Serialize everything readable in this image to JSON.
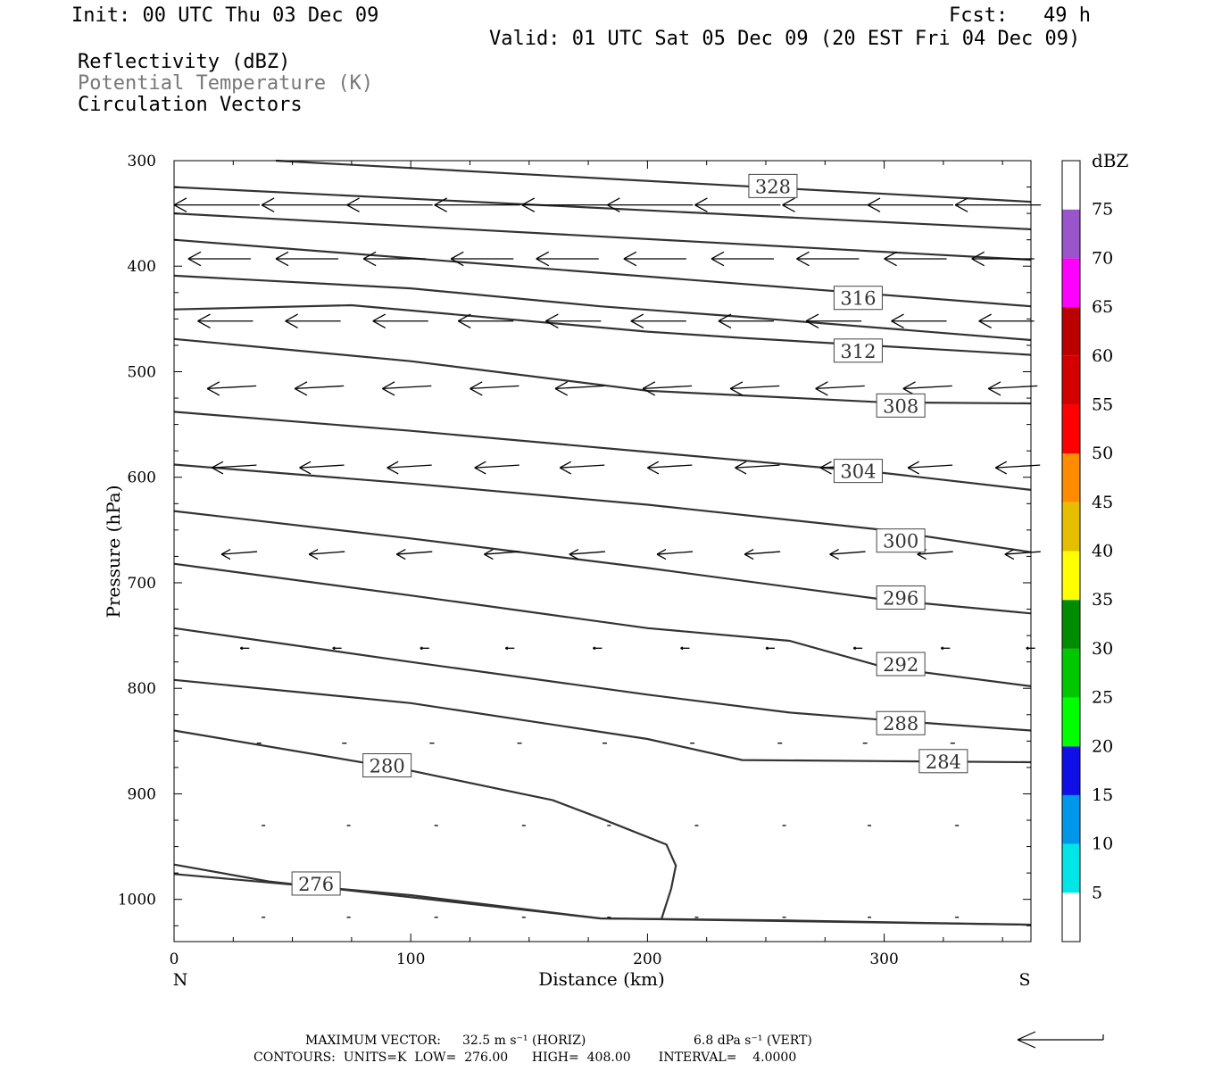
{
  "header": {
    "init": "Init: 00 UTC Thu 03 Dec 09",
    "fcst": "Fcst:   49 h",
    "valid": "Valid: 01 UTC Sat 05 Dec 09 (20 EST Fri 04 Dec 09)",
    "fields": [
      "Reflectivity (dBZ)",
      "Potential Temperature (K)",
      "Circulation Vectors"
    ]
  },
  "colors": {
    "contour": "#333333",
    "vector": "#000000",
    "field_gray": "#777777"
  },
  "chart_data": {
    "type": "cross-section",
    "xlabel": "Distance (km)",
    "ylabel": "Pressure (hPa)",
    "xlim": [
      0,
      362
    ],
    "ylim": [
      300,
      1040
    ],
    "x_ticks": [
      0,
      100,
      200,
      300
    ],
    "y_ticks": [
      300,
      400,
      500,
      600,
      700,
      800,
      900,
      1000
    ],
    "x_end_labels": {
      "left": "N",
      "right": "S"
    },
    "contours": [
      {
        "label": "328",
        "points": [
          [
            43,
            300
          ],
          [
            362,
            339
          ]
        ],
        "label_at": [
          253,
          324
        ]
      },
      {
        "label": "",
        "points": [
          [
            0,
            325
          ],
          [
            362,
            365
          ]
        ]
      },
      {
        "label": "",
        "points": [
          [
            0,
            350
          ],
          [
            362,
            394
          ]
        ]
      },
      {
        "label": "",
        "points": [
          [
            0,
            375
          ],
          [
            362,
            438
          ]
        ]
      },
      {
        "label": "316",
        "points": [
          [
            0,
            409
          ],
          [
            100,
            421
          ],
          [
            180,
            438
          ],
          [
            240,
            448
          ],
          [
            362,
            470
          ]
        ],
        "label_at": [
          289,
          430
        ]
      },
      {
        "label": "312",
        "points": [
          [
            0,
            441
          ],
          [
            75,
            437
          ],
          [
            100,
            442
          ],
          [
            200,
            462
          ],
          [
            240,
            468
          ],
          [
            362,
            484
          ]
        ],
        "label_at": [
          289,
          480
        ]
      },
      {
        "label": "308",
        "points": [
          [
            0,
            469
          ],
          [
            100,
            490
          ],
          [
            200,
            518
          ],
          [
            300,
            529
          ],
          [
            362,
            530
          ]
        ],
        "label_at": [
          307,
          532
        ]
      },
      {
        "label": "304",
        "points": [
          [
            0,
            538
          ],
          [
            100,
            556
          ],
          [
            200,
            576
          ],
          [
            300,
            596
          ],
          [
            362,
            612
          ]
        ],
        "label_at": [
          289,
          594
        ]
      },
      {
        "label": "300",
        "points": [
          [
            0,
            588
          ],
          [
            100,
            606
          ],
          [
            200,
            626
          ],
          [
            300,
            650
          ],
          [
            362,
            671
          ]
        ],
        "label_at": [
          307,
          660
        ]
      },
      {
        "label": "296",
        "points": [
          [
            0,
            632
          ],
          [
            100,
            658
          ],
          [
            200,
            686
          ],
          [
            300,
            716
          ],
          [
            362,
            729
          ]
        ],
        "label_at": [
          307,
          714
        ]
      },
      {
        "label": "292",
        "points": [
          [
            0,
            682
          ],
          [
            100,
            712
          ],
          [
            200,
            743
          ],
          [
            260,
            755
          ],
          [
            300,
            780
          ],
          [
            362,
            798
          ]
        ],
        "label_at": [
          307,
          777
        ]
      },
      {
        "label": "288",
        "points": [
          [
            0,
            743
          ],
          [
            100,
            775
          ],
          [
            200,
            806
          ],
          [
            260,
            823
          ],
          [
            300,
            830
          ],
          [
            362,
            840
          ]
        ],
        "label_at": [
          307,
          833
        ]
      },
      {
        "label": "284",
        "points": [
          [
            0,
            792
          ],
          [
            100,
            814
          ],
          [
            200,
            848
          ],
          [
            240,
            868
          ],
          [
            300,
            869
          ],
          [
            362,
            870
          ]
        ],
        "label_at": [
          325,
          869
        ]
      },
      {
        "label": "280",
        "points": [
          [
            0,
            840
          ],
          [
            100,
            878
          ],
          [
            160,
            906
          ],
          [
            180,
            923
          ],
          [
            208,
            948
          ],
          [
            212,
            968
          ],
          [
            210,
            990
          ],
          [
            206,
            1018
          ]
        ],
        "label_at": [
          90,
          873
        ]
      },
      {
        "label": "276",
        "points": [
          [
            0,
            967
          ],
          [
            40,
            983
          ],
          [
            100,
            998
          ],
          [
            180,
            1018
          ],
          [
            260,
            1020
          ],
          [
            362,
            1024
          ]
        ],
        "label_at": [
          60,
          985
        ]
      },
      {
        "label": "",
        "points": [
          [
            0,
            976
          ],
          [
            100,
            996
          ],
          [
            180,
            1018
          ],
          [
            362,
            1024
          ]
        ]
      }
    ],
    "vectors": {
      "max_horiz": "32.5 m s⁻¹ (HORIZ)",
      "max_vert": "6.8 dPa s⁻¹ (VERT)"
    },
    "contour_info": {
      "units": "K",
      "low": 276.0,
      "high": 408.0,
      "interval": 4.0
    },
    "colorbar": {
      "label": "dBZ",
      "levels": [
        5,
        10,
        15,
        20,
        25,
        30,
        35,
        40,
        45,
        50,
        55,
        60,
        65,
        70,
        75
      ],
      "colors": [
        "#ffffff",
        "#00e6e6",
        "#0097eb",
        "#1010e6",
        "#00ff00",
        "#00c800",
        "#008c00",
        "#ffff00",
        "#e6be00",
        "#ff8c00",
        "#ff0000",
        "#d40000",
        "#bc0000",
        "#ff00ff",
        "#9955c9",
        "#ffffff"
      ]
    }
  },
  "footer": {
    "max_vector_label": "MAXIMUM VECTOR:",
    "contours_line": "CONTOURS:  UNITS=K  LOW=  276.00      HIGH=  408.00       INTERVAL=    4.0000"
  }
}
